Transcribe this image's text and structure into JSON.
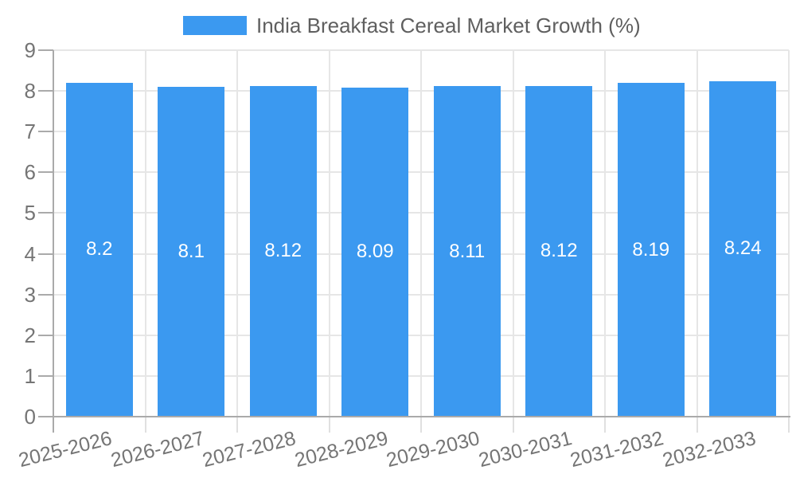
{
  "chart_data": {
    "type": "bar",
    "title": "India Breakfast Cereal Market Growth (%)",
    "categories": [
      "2025-2026",
      "2026-2027",
      "2027-2028",
      "2028-2029",
      "2029-2030",
      "2030-2031",
      "2031-2032",
      "2032-2033"
    ],
    "values": [
      8.2,
      8.1,
      8.12,
      8.09,
      8.11,
      8.12,
      8.19,
      8.24
    ],
    "value_labels": [
      "8.2",
      "8.1",
      "8.12",
      "8.09",
      "8.11",
      "8.12",
      "8.19",
      "8.24"
    ],
    "xlabel": "",
    "ylabel": "",
    "ylim": [
      0,
      9
    ],
    "yticks": [
      "0",
      "1",
      "2",
      "3",
      "4",
      "5",
      "6",
      "7",
      "8",
      "9"
    ],
    "grid": true,
    "legend_position": "top",
    "colors": {
      "bar": "#3B99F0",
      "grid": "#e6e6e6",
      "axis": "#aaaaaa",
      "minor_tick": "#e0e0e0",
      "axis_label": "#757575",
      "legend_text": "#5f5f5f",
      "value_label": "#ffffff"
    }
  }
}
